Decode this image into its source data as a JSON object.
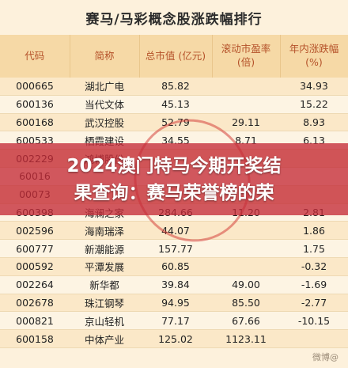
{
  "title": "赛马/马彩概念股涨跌幅排行",
  "headers": {
    "code": "代码",
    "name": "简称",
    "market_cap": "总市值 (亿元)",
    "pe_line1": "滚动市盈率",
    "pe_line2": "(倍)",
    "change_line1": "年内涨跌幅",
    "change_line2": "(%)"
  },
  "rows": [
    {
      "code": "000665",
      "name": "湖北广电",
      "cap": "85.82",
      "pe": "",
      "chg": "34.93"
    },
    {
      "code": "600136",
      "name": "当代文体",
      "cap": "45.13",
      "pe": "",
      "chg": "15.22"
    },
    {
      "code": "600168",
      "name": "武汉控股",
      "cap": "52.79",
      "pe": "29.11",
      "chg": "8.93"
    },
    {
      "code": "600533",
      "name": "栖霞建设",
      "cap": "34.55",
      "pe": "8.71",
      "chg": "6.13"
    },
    {
      "code": "002229",
      "name": "鸿博股份",
      "cap": "",
      "pe": "",
      "chg": ""
    },
    {
      "code": "60016",
      "name": "",
      "cap": "",
      "pe": "",
      "chg": ""
    },
    {
      "code": "00073",
      "name": "",
      "cap": "",
      "pe": "",
      "chg": ""
    },
    {
      "code": "600398",
      "name": "海澜之家",
      "cap": "284.66",
      "pe": "11.20",
      "chg": "2.81"
    },
    {
      "code": "002596",
      "name": "海南瑞泽",
      "cap": "44.07",
      "pe": "",
      "chg": "1.86"
    },
    {
      "code": "600777",
      "name": "新潮能源",
      "cap": "157.77",
      "pe": "",
      "chg": "1.75"
    },
    {
      "code": "000592",
      "name": "平潭发展",
      "cap": "60.85",
      "pe": "",
      "chg": "-0.32"
    },
    {
      "code": "002264",
      "name": "新华都",
      "cap": "39.84",
      "pe": "49.00",
      "chg": "-1.69"
    },
    {
      "code": "002678",
      "name": "珠江钢琴",
      "cap": "94.95",
      "pe": "85.50",
      "chg": "-2.77"
    },
    {
      "code": "000821",
      "name": "京山轻机",
      "cap": "77.17",
      "pe": "67.66",
      "chg": "-10.15"
    },
    {
      "code": "600158",
      "name": "中体产业",
      "cap": "125.02",
      "pe": "1123.11",
      "chg": ""
    }
  ],
  "banner": {
    "line1": "2024澳门特马今期开奖结",
    "line2": "果查询：赛马荣誉榜的荣"
  },
  "watermark": "微博@"
}
